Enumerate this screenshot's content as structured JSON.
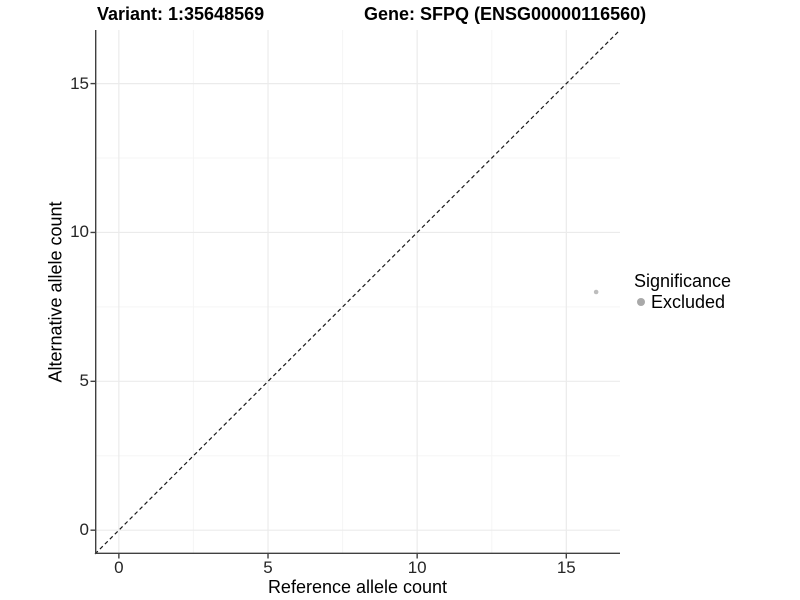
{
  "titles": {
    "variant": "Variant: 1:35648569",
    "gene": "Gene: SFPQ (ENSG00000116560)"
  },
  "axes": {
    "x_label": "Reference allele count",
    "y_label": "Alternative allele count",
    "x_tick_labels": [
      "0",
      "5",
      "10",
      "15"
    ],
    "y_tick_labels": [
      "0",
      "5",
      "10",
      "15"
    ]
  },
  "legend": {
    "title": "Significance",
    "items": [
      {
        "label": "Excluded",
        "color": "#a9a9a9"
      }
    ]
  },
  "chart_data": {
    "type": "scatter",
    "title": "Variant: 1:35648569 / Gene: SFPQ (ENSG00000116560)",
    "xlabel": "Reference allele count",
    "ylabel": "Alternative allele count",
    "xlim": [
      -0.8,
      16.8
    ],
    "ylim": [
      -0.8,
      16.8
    ],
    "x_major_ticks": [
      0,
      5,
      10,
      15
    ],
    "y_major_ticks": [
      0,
      5,
      10,
      15
    ],
    "x_minor_ticks": [
      2.5,
      7.5,
      12.5
    ],
    "y_minor_ticks": [
      2.5,
      7.5,
      12.5
    ],
    "grid": true,
    "legend_position": "right",
    "reference_line": {
      "slope": 1,
      "intercept": 0,
      "linetype": "dashed"
    },
    "series": [
      {
        "name": "Excluded",
        "color": "#bdbdbd",
        "points": [
          {
            "x": 16,
            "y": 8
          }
        ]
      }
    ]
  },
  "colors": {
    "background": "#ffffff",
    "grid_major": "#ebebeb",
    "grid_minor": "#f5f5f5",
    "axis_line": "#404040",
    "tick_label": "#262626",
    "text": "#000000",
    "identity_line": "#1a1a1a"
  }
}
